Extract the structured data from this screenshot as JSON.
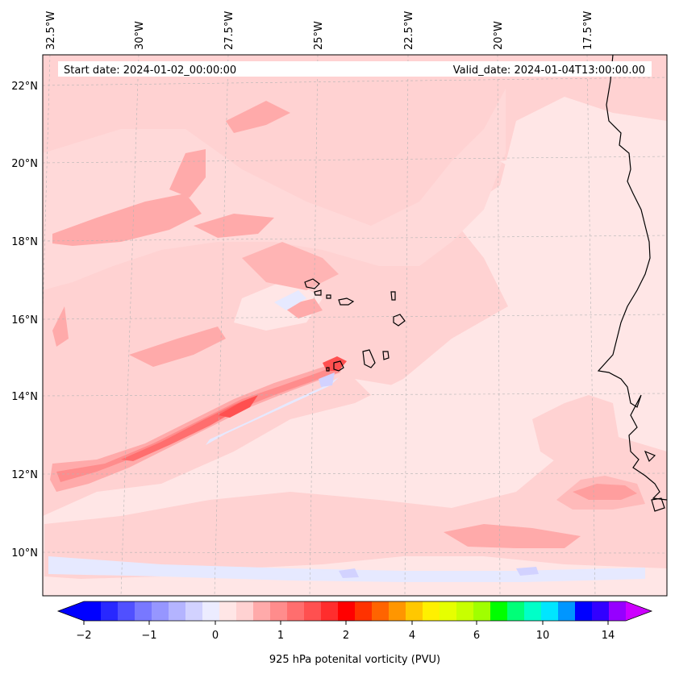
{
  "map": {
    "start_date": "Start date: 2024-01-02_00:00:00",
    "valid_date": "Valid_date: 2024-01-04T13:00:00.00",
    "lon_labels": [
      "32.5°W",
      "30°W",
      "27.5°W",
      "25°W",
      "22.5°W",
      "20°W",
      "17.5°W"
    ],
    "lat_labels": [
      "22°N",
      "20°N",
      "18°N",
      "16°N",
      "14°N",
      "12°N",
      "10°N"
    ],
    "colors": {
      "background_field": "#ffe6e6",
      "light_pink": "#ffd2d2",
      "pink": "#ffaaaa",
      "salmon": "#ff8c8c",
      "red": "#ff5050",
      "light_blue": "#e6e9ff",
      "coastline": "#000000",
      "grid": "#b4b4b4"
    }
  },
  "colorbar": {
    "label": "925 hPa potenital vorticity (PVU)",
    "tick_labels": [
      "−2",
      "−1",
      "0",
      "1",
      "2",
      "4",
      "6",
      "10",
      "14"
    ],
    "colors": [
      "#0000ff",
      "#2828ff",
      "#5050ff",
      "#7878ff",
      "#9696ff",
      "#b4b4ff",
      "#d2d2ff",
      "#ececff",
      "#ffe6e6",
      "#ffd2d2",
      "#ffaaaa",
      "#ff8c8c",
      "#ff6e6e",
      "#ff5050",
      "#ff2d2d",
      "#ff0000",
      "#ff3200",
      "#ff6400",
      "#ff9600",
      "#ffc800",
      "#fff000",
      "#e6ff00",
      "#c8ff00",
      "#a0ff00",
      "#00ff00",
      "#00ff78",
      "#00ffc8",
      "#00e6ff",
      "#0096ff",
      "#0000ff",
      "#3200ff",
      "#9600ff"
    ],
    "under_color": "#0000ff",
    "over_color": "#cc00ff"
  }
}
